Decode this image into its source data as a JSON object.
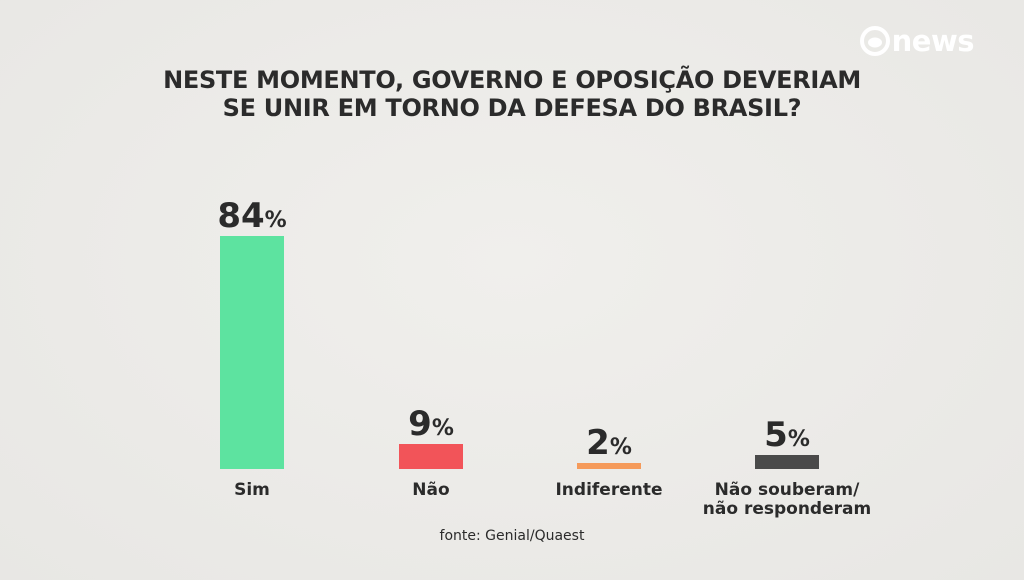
{
  "brand": {
    "logo_text": "news",
    "logo_icon": "globo-icon"
  },
  "chart_data": {
    "type": "bar",
    "title": "NESTE MOMENTO, GOVERNO E OPOSIÇÃO DEVERIAM SE UNIR EM TORNO DA DEFESA DO BRASIL?",
    "categories": [
      "Sim",
      "Não",
      "Indiferente",
      "Não souberam/\nnão responderam"
    ],
    "values": [
      84,
      9,
      2,
      5
    ],
    "unit": "%",
    "colors": [
      "#5de3a0",
      "#f25459",
      "#f59a5a",
      "#4a4a4a"
    ],
    "ylim": [
      0,
      84
    ],
    "grid": false,
    "legend": "none"
  },
  "source": "fonte: Genial/Quaest"
}
